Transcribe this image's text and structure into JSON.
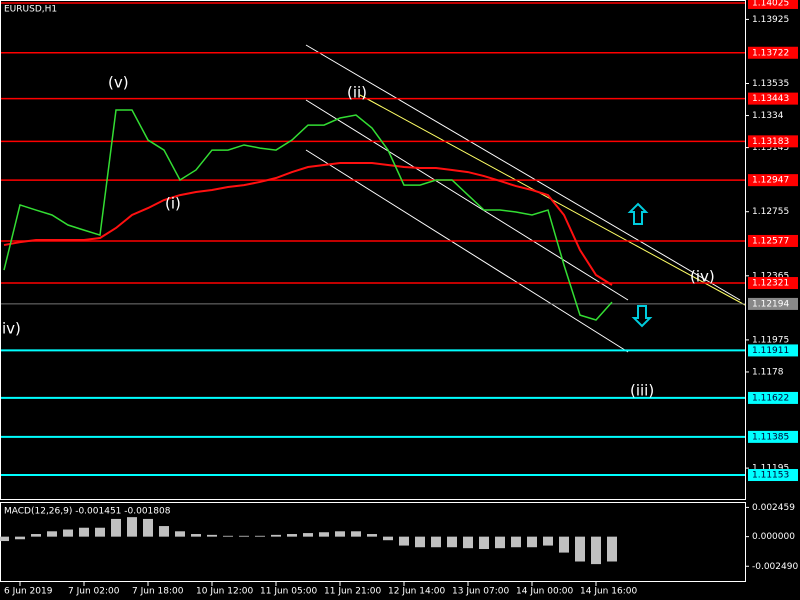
{
  "chart_data": [
    {
      "type": "line",
      "title": "EURUSD,H1",
      "categories": [
        null,
        "6 Jun 2019",
        null,
        null,
        null,
        "7 Jun 02:00",
        null,
        null,
        null,
        "7 Jun 18:00",
        null,
        null,
        null,
        "10 Jun 12:00",
        null,
        null,
        null,
        "11 Jun 05:00",
        null,
        null,
        null,
        "11 Jun 21:00",
        null,
        null,
        null,
        "12 Jun 14:00",
        null,
        null,
        null,
        "13 Jun 07:00",
        null,
        null,
        null,
        "14 Jun 00:00",
        null,
        null,
        null,
        "14 Jun 16:00",
        null
      ],
      "values": [
        1.124,
        1.12796,
        1.12765,
        1.12735,
        1.12674,
        1.12643,
        1.12613,
        1.13374,
        1.13374,
        1.13191,
        1.1313,
        1.12948,
        1.13009,
        1.1313,
        1.1313,
        1.13161,
        1.13142,
        1.1313,
        1.13191,
        1.13282,
        1.13282,
        1.13325,
        1.13343,
        1.13264,
        1.1313,
        1.12917,
        1.12917,
        1.12948,
        1.12948,
        1.12856,
        1.12765,
        1.12765,
        1.12753,
        1.12735,
        1.12765,
        1.1243,
        1.12126,
        1.12096,
        1.12205
      ],
      "color": "#33dd33",
      "ma_values": [
        1.12552,
        1.1257,
        1.12583,
        1.12583,
        1.12583,
        1.12583,
        1.12595,
        1.12656,
        1.12735,
        1.12777,
        1.12826,
        1.12856,
        1.12875,
        1.12887,
        1.12905,
        1.12917,
        1.12936,
        1.1296,
        1.12996,
        1.13027,
        1.13039,
        1.13051,
        1.13051,
        1.13051,
        1.13039,
        1.13027,
        1.13021,
        1.13021,
        1.13009,
        1.12996,
        1.12972,
        1.12942,
        1.12911,
        1.12887,
        1.12856,
        1.12735,
        1.12522,
        1.1237,
        1.12309
      ],
      "ma_color": "#ff1010",
      "ylim": [
        1.11001,
        1.14043
      ],
      "yticks": [
        1.13925,
        1.13535,
        1.1334,
        1.13145,
        1.12755,
        1.12365,
        1.11975,
        1.1178,
        1.11195
      ],
      "levels": [
        {
          "value": 1.14025,
          "color": "#ff0000"
        },
        {
          "value": 1.13722,
          "color": "#ff0000"
        },
        {
          "value": 1.13443,
          "color": "#ff0000"
        },
        {
          "value": 1.13183,
          "color": "#ff0000"
        },
        {
          "value": 1.12947,
          "color": "#ff0000"
        },
        {
          "value": 1.12577,
          "color": "#ff0000"
        },
        {
          "value": 1.12321,
          "color": "#ff0000"
        },
        {
          "value": 1.11911,
          "color": "#00ffff"
        },
        {
          "value": 1.11622,
          "color": "#00ffff"
        },
        {
          "value": 1.11385,
          "color": "#00ffff"
        },
        {
          "value": 1.11153,
          "color": "#00ffff"
        }
      ],
      "last_price": 1.12194,
      "annotations": [
        "(v)",
        "(ii)",
        "(i)",
        "(iv)",
        "(iii)",
        "iv)"
      ]
    },
    {
      "type": "bar",
      "title": "MACD(12,26,9) -0.001451 -0.001808",
      "values": [
        -0.00037,
        -0.00022,
        0.00022,
        0.00045,
        0.0006,
        0.00075,
        0.00075,
        0.00149,
        0.00164,
        0.00149,
        0.00089,
        0.00045,
        0.00022,
        0.00015,
        7e-05,
        7e-05,
        7e-05,
        0.00015,
        0.00022,
        0.0003,
        0.00037,
        0.00045,
        0.00045,
        0.00022,
        -0.0003,
        -0.00075,
        -0.00089,
        -0.00089,
        -0.00089,
        -0.00097,
        -0.00104,
        -0.00097,
        -0.00089,
        -0.00089,
        -0.00075,
        -0.00134,
        -0.00209,
        -0.00231,
        -0.00209
      ],
      "color": "#c0c0c0",
      "ylim": [
        -0.00373,
        0.00283
      ],
      "yticks": [
        0.002459,
        {
          "value": 0,
          "label": "0.000000"
        },
        {
          "value": -0.00249,
          "label": "-0.002490"
        }
      ]
    }
  ]
}
